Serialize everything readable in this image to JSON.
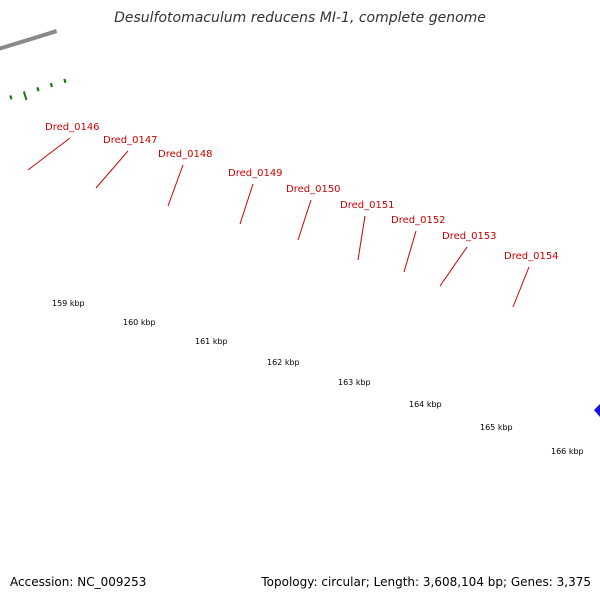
{
  "title": "Desulfotomaculum reducens MI-1, complete genome",
  "accession": "Accession: NC_009253",
  "summary": "Topology: circular; Length: 3,608,104 bp; Genes: 3,375",
  "colors": {
    "label": "#cc0000",
    "arrow": "#ee0000",
    "backbone": "#8a8a8a",
    "tick": "#117a11",
    "cyan": "#22e0e6",
    "blue": "#1414e0",
    "lightgray": "#c4c4c4",
    "darkgray": "#666666",
    "navy": "#0a0a70"
  },
  "genes": [
    "Dred_0146",
    "Dred_0147",
    "Dred_0148",
    "Dred_0149",
    "Dred_0150",
    "Dred_0151",
    "Dred_0152",
    "Dred_0153",
    "Dred_0154"
  ],
  "scale_labels": [
    "159 kbp",
    "160 kbp",
    "161 kbp",
    "162 kbp",
    "163 kbp",
    "164 kbp",
    "165 kbp",
    "166 kbp"
  ]
}
